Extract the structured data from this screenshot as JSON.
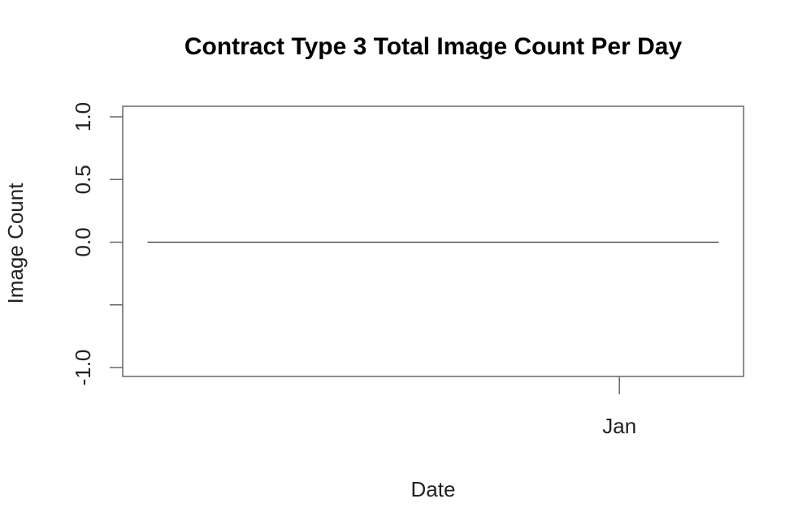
{
  "chart_data": {
    "type": "line",
    "title": "Contract Type 3 Total Image Count Per Day",
    "xlabel": "Date",
    "ylabel": "Image Count",
    "ylim": [
      -1.0,
      1.0
    ],
    "y_ticks": [
      -1.0,
      -0.5,
      0.0,
      0.5,
      1.0
    ],
    "y_tick_labels": [
      "-1.0",
      "",
      "0.0",
      "0.5",
      "1.0"
    ],
    "x_ticks": [
      {
        "label": "Jan",
        "value": 0.8
      }
    ],
    "xlim": [
      0,
      1
    ],
    "grid": false,
    "series": [
      {
        "values": [
          0,
          0
        ],
        "x": [
          0.04,
          0.96
        ]
      }
    ]
  }
}
